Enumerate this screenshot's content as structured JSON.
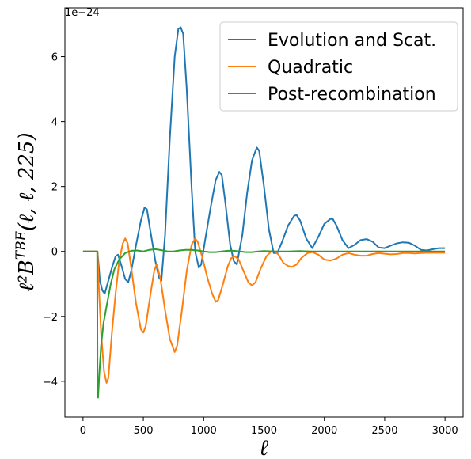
{
  "chart_data": {
    "type": "line",
    "title": "",
    "offset_text": "1e−24",
    "xlabel": "ℓ",
    "ylabel": "ℓ²B^{TBE}(ℓ, ℓ, 225)",
    "xlim": [
      -150,
      3150
    ],
    "ylim": [
      -5.1,
      7.5
    ],
    "xticks": [
      0,
      500,
      1000,
      1500,
      2000,
      2500,
      3000
    ],
    "xtick_labels": [
      "0",
      "500",
      "1000",
      "1500",
      "2000",
      "2500",
      "3000"
    ],
    "yticks": [
      -4,
      -2,
      0,
      2,
      4,
      6
    ],
    "ytick_labels": [
      "−4",
      "−2",
      "0",
      "2",
      "4",
      "6"
    ],
    "grid": false,
    "legend_position": "top-right",
    "series": [
      {
        "name": "Evolution and Scat.",
        "color": "#1f77b4",
        "points": [
          [
            0,
            0
          ],
          [
            100,
            0
          ],
          [
            120,
            0
          ],
          [
            140,
            -0.9
          ],
          [
            160,
            -1.2
          ],
          [
            180,
            -1.3
          ],
          [
            210,
            -0.9
          ],
          [
            240,
            -0.5
          ],
          [
            270,
            -0.15
          ],
          [
            290,
            -0.1
          ],
          [
            320,
            -0.45
          ],
          [
            350,
            -0.85
          ],
          [
            375,
            -0.95
          ],
          [
            400,
            -0.6
          ],
          [
            440,
            0.2
          ],
          [
            480,
            0.95
          ],
          [
            510,
            1.35
          ],
          [
            530,
            1.3
          ],
          [
            560,
            0.6
          ],
          [
            600,
            -0.3
          ],
          [
            630,
            -0.8
          ],
          [
            650,
            -0.9
          ],
          [
            680,
            0.5
          ],
          [
            720,
            3.5
          ],
          [
            760,
            6.0
          ],
          [
            790,
            6.85
          ],
          [
            810,
            6.9
          ],
          [
            830,
            6.7
          ],
          [
            860,
            5.0
          ],
          [
            900,
            2.0
          ],
          [
            930,
            0
          ],
          [
            960,
            -0.5
          ],
          [
            980,
            -0.4
          ],
          [
            1010,
            0.3
          ],
          [
            1060,
            1.4
          ],
          [
            1100,
            2.2
          ],
          [
            1130,
            2.45
          ],
          [
            1150,
            2.35
          ],
          [
            1180,
            1.5
          ],
          [
            1220,
            0.2
          ],
          [
            1250,
            -0.3
          ],
          [
            1275,
            -0.4
          ],
          [
            1320,
            0.5
          ],
          [
            1360,
            1.8
          ],
          [
            1400,
            2.8
          ],
          [
            1440,
            3.2
          ],
          [
            1460,
            3.1
          ],
          [
            1500,
            2.0
          ],
          [
            1540,
            0.7
          ],
          [
            1580,
            -0.05
          ],
          [
            1610,
            -0.05
          ],
          [
            1650,
            0.3
          ],
          [
            1700,
            0.8
          ],
          [
            1750,
            1.1
          ],
          [
            1770,
            1.12
          ],
          [
            1800,
            0.95
          ],
          [
            1850,
            0.4
          ],
          [
            1900,
            0.1
          ],
          [
            1950,
            0.45
          ],
          [
            2000,
            0.85
          ],
          [
            2050,
            1.0
          ],
          [
            2070,
            1.0
          ],
          [
            2100,
            0.8
          ],
          [
            2150,
            0.35
          ],
          [
            2200,
            0.1
          ],
          [
            2250,
            0.2
          ],
          [
            2300,
            0.35
          ],
          [
            2350,
            0.38
          ],
          [
            2400,
            0.3
          ],
          [
            2450,
            0.12
          ],
          [
            2500,
            0.1
          ],
          [
            2550,
            0.18
          ],
          [
            2600,
            0.25
          ],
          [
            2650,
            0.28
          ],
          [
            2700,
            0.27
          ],
          [
            2750,
            0.18
          ],
          [
            2800,
            0.05
          ],
          [
            2850,
            0.03
          ],
          [
            2900,
            0.07
          ],
          [
            2950,
            0.1
          ],
          [
            3000,
            0.1
          ]
        ]
      },
      {
        "name": "Quadratic",
        "color": "#ff7f0e",
        "points": [
          [
            0,
            0
          ],
          [
            100,
            0
          ],
          [
            120,
            0
          ],
          [
            130,
            -1.0
          ],
          [
            150,
            -2.5
          ],
          [
            175,
            -3.7
          ],
          [
            195,
            -4.05
          ],
          [
            210,
            -3.9
          ],
          [
            240,
            -2.5
          ],
          [
            270,
            -1.3
          ],
          [
            300,
            -0.3
          ],
          [
            330,
            0.25
          ],
          [
            350,
            0.4
          ],
          [
            370,
            0.25
          ],
          [
            400,
            -0.5
          ],
          [
            440,
            -1.6
          ],
          [
            480,
            -2.4
          ],
          [
            500,
            -2.5
          ],
          [
            520,
            -2.3
          ],
          [
            560,
            -1.3
          ],
          [
            590,
            -0.6
          ],
          [
            610,
            -0.4
          ],
          [
            640,
            -0.8
          ],
          [
            680,
            -1.8
          ],
          [
            720,
            -2.7
          ],
          [
            760,
            -3.1
          ],
          [
            780,
            -2.9
          ],
          [
            820,
            -1.8
          ],
          [
            860,
            -0.6
          ],
          [
            900,
            0.2
          ],
          [
            930,
            0.4
          ],
          [
            950,
            0.3
          ],
          [
            990,
            -0.2
          ],
          [
            1030,
            -0.8
          ],
          [
            1070,
            -1.3
          ],
          [
            1100,
            -1.55
          ],
          [
            1120,
            -1.5
          ],
          [
            1160,
            -1.0
          ],
          [
            1200,
            -0.45
          ],
          [
            1230,
            -0.2
          ],
          [
            1260,
            -0.15
          ],
          [
            1290,
            -0.25
          ],
          [
            1330,
            -0.6
          ],
          [
            1370,
            -0.95
          ],
          [
            1400,
            -1.05
          ],
          [
            1430,
            -0.95
          ],
          [
            1470,
            -0.55
          ],
          [
            1520,
            -0.15
          ],
          [
            1560,
            0
          ],
          [
            1590,
            0
          ],
          [
            1620,
            -0.1
          ],
          [
            1660,
            -0.35
          ],
          [
            1700,
            -0.45
          ],
          [
            1730,
            -0.48
          ],
          [
            1770,
            -0.4
          ],
          [
            1810,
            -0.2
          ],
          [
            1860,
            -0.05
          ],
          [
            1900,
            -0.02
          ],
          [
            1950,
            -0.1
          ],
          [
            2000,
            -0.25
          ],
          [
            2050,
            -0.28
          ],
          [
            2100,
            -0.22
          ],
          [
            2150,
            -0.1
          ],
          [
            2200,
            -0.05
          ],
          [
            2250,
            -0.1
          ],
          [
            2300,
            -0.13
          ],
          [
            2350,
            -0.13
          ],
          [
            2400,
            -0.08
          ],
          [
            2450,
            -0.05
          ],
          [
            2500,
            -0.07
          ],
          [
            2550,
            -0.09
          ],
          [
            2600,
            -0.08
          ],
          [
            2650,
            -0.05
          ],
          [
            2700,
            -0.05
          ],
          [
            2750,
            -0.06
          ],
          [
            2800,
            -0.05
          ],
          [
            2850,
            -0.04
          ],
          [
            2900,
            -0.04
          ],
          [
            2950,
            -0.04
          ],
          [
            3000,
            -0.04
          ]
        ]
      },
      {
        "name": "Post-recombination",
        "color": "#2ca02c",
        "points": [
          [
            0,
            0
          ],
          [
            100,
            0
          ],
          [
            118,
            0
          ],
          [
            120,
            -4.45
          ],
          [
            125,
            -4.5
          ],
          [
            135,
            -3.8
          ],
          [
            150,
            -2.9
          ],
          [
            170,
            -2.2
          ],
          [
            200,
            -1.6
          ],
          [
            230,
            -1.0
          ],
          [
            260,
            -0.55
          ],
          [
            300,
            -0.25
          ],
          [
            350,
            -0.05
          ],
          [
            400,
            0.02
          ],
          [
            450,
            0.03
          ],
          [
            500,
            0.0
          ],
          [
            550,
            0.05
          ],
          [
            600,
            0.07
          ],
          [
            650,
            0.04
          ],
          [
            700,
            0.0
          ],
          [
            750,
            0.0
          ],
          [
            800,
            0.03
          ],
          [
            850,
            0.05
          ],
          [
            900,
            0.05
          ],
          [
            950,
            0.03
          ],
          [
            1000,
            0.0
          ],
          [
            1050,
            -0.02
          ],
          [
            1100,
            -0.02
          ],
          [
            1150,
            0.0
          ],
          [
            1200,
            0.02
          ],
          [
            1250,
            0.02
          ],
          [
            1300,
            0.0
          ],
          [
            1350,
            -0.02
          ],
          [
            1400,
            -0.02
          ],
          [
            1450,
            0.0
          ],
          [
            1500,
            0.01
          ],
          [
            1600,
            0.0
          ],
          [
            1700,
            0.0
          ],
          [
            1800,
            0.01
          ],
          [
            1900,
            0.0
          ],
          [
            2000,
            0.0
          ],
          [
            2200,
            0.0
          ],
          [
            2400,
            0.0
          ],
          [
            2600,
            0.0
          ],
          [
            2800,
            0.0
          ],
          [
            3000,
            0.0
          ]
        ]
      }
    ]
  }
}
